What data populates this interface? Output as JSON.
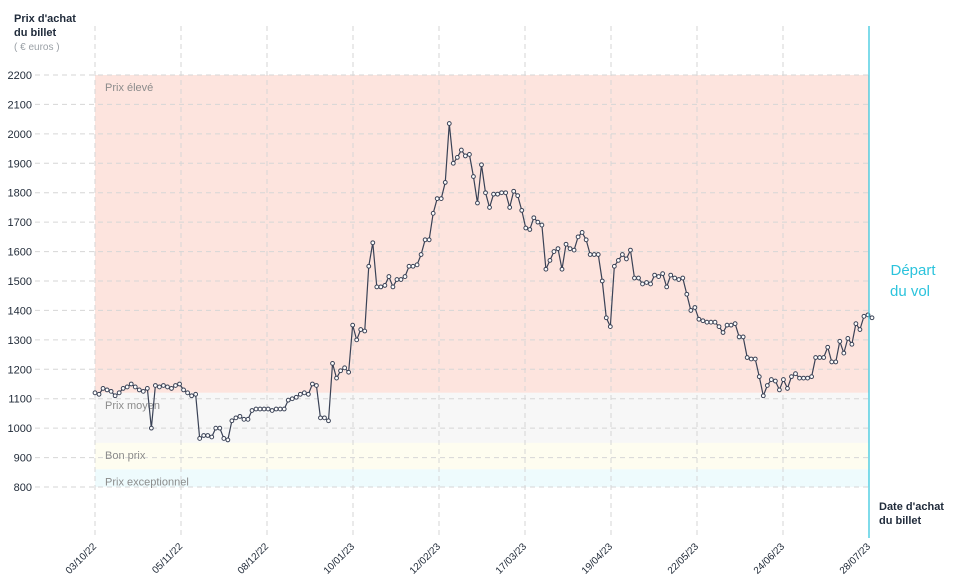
{
  "y_axis": {
    "title_line1": "Prix d'achat",
    "title_line2": "du billet",
    "unit": "( € euros )"
  },
  "x_axis": {
    "title_line1": "Date d'achat",
    "title_line2": "du billet"
  },
  "departure": {
    "line1": "Départ",
    "line2": "du vol"
  },
  "colors": {
    "high": "#fde4de",
    "mid": "#f7f7f7",
    "good": "#fefdf0",
    "exceptional": "#eefbfd",
    "line": "#3a4256",
    "departure": "#2bc3dc"
  },
  "bands": [
    {
      "label": "Prix élevé",
      "from": 1120,
      "to": 2200,
      "color": "#fde4de"
    },
    {
      "label": "Prix moyen",
      "from": 950,
      "to": 1120,
      "color": "#f7f7f7"
    },
    {
      "label": "Bon prix",
      "from": 860,
      "to": 950,
      "color": "#fefdf0"
    },
    {
      "label": "Prix exceptionnel",
      "from": 800,
      "to": 860,
      "color": "#eefbfd"
    }
  ],
  "chart_data": {
    "type": "line",
    "x_ticks": [
      "03/10/22",
      "05/11/22",
      "08/12/22",
      "10/01/23",
      "12/02/23",
      "17/03/23",
      "19/04/23",
      "22/05/23",
      "24/06/23",
      "28/07/23"
    ],
    "y_ticks": [
      800,
      900,
      1000,
      1100,
      1200,
      1300,
      1400,
      1500,
      1600,
      1700,
      1800,
      1900,
      2000,
      2100,
      2200
    ],
    "ylim": [
      800,
      2200
    ],
    "grid": true,
    "legend": "none",
    "series": [
      {
        "values": [
          1120,
          1115,
          1135,
          1130,
          1125,
          1110,
          1120,
          1135,
          1140,
          1150,
          1140,
          1130,
          1125,
          1135,
          1000,
          1145,
          1140,
          1145,
          1140,
          1135,
          1145,
          1150,
          1130,
          1120,
          1110,
          1115,
          965,
          975,
          975,
          970,
          1000,
          1000,
          965,
          960,
          1025,
          1035,
          1040,
          1030,
          1030,
          1060,
          1065,
          1065,
          1065,
          1065,
          1060,
          1065,
          1065,
          1065,
          1095,
          1100,
          1105,
          1115,
          1120,
          1115,
          1150,
          1145,
          1035,
          1035,
          1025,
          1220,
          1170,
          1195,
          1205,
          1190,
          1350,
          1300,
          1335,
          1330,
          1550,
          1630,
          1480,
          1480,
          1485,
          1515,
          1480,
          1505,
          1505,
          1515,
          1550,
          1550,
          1555,
          1590,
          1640,
          1640,
          1730,
          1780,
          1780,
          1835,
          2035,
          1900,
          1920,
          1945,
          1925,
          1930,
          1855,
          1765,
          1895,
          1800,
          1750,
          1795,
          1795,
          1800,
          1800,
          1750,
          1805,
          1790,
          1740,
          1680,
          1675,
          1715,
          1700,
          1690,
          1540,
          1570,
          1600,
          1610,
          1540,
          1625,
          1610,
          1605,
          1650,
          1665,
          1640,
          1590,
          1590,
          1590,
          1500,
          1375,
          1345,
          1550,
          1570,
          1590,
          1575,
          1605,
          1510,
          1510,
          1490,
          1495,
          1490,
          1520,
          1515,
          1525,
          1480,
          1520,
          1510,
          1505,
          1510,
          1455,
          1400,
          1410,
          1370,
          1365,
          1360,
          1360,
          1360,
          1345,
          1325,
          1350,
          1350,
          1355,
          1310,
          1310,
          1240,
          1235,
          1235,
          1175,
          1110,
          1145,
          1165,
          1160,
          1130,
          1165,
          1135,
          1175,
          1185,
          1170,
          1170,
          1170,
          1175,
          1240,
          1240,
          1240,
          1275,
          1225,
          1225,
          1295,
          1255,
          1305,
          1285,
          1355,
          1335,
          1380,
          1385,
          1375
        ]
      }
    ]
  }
}
